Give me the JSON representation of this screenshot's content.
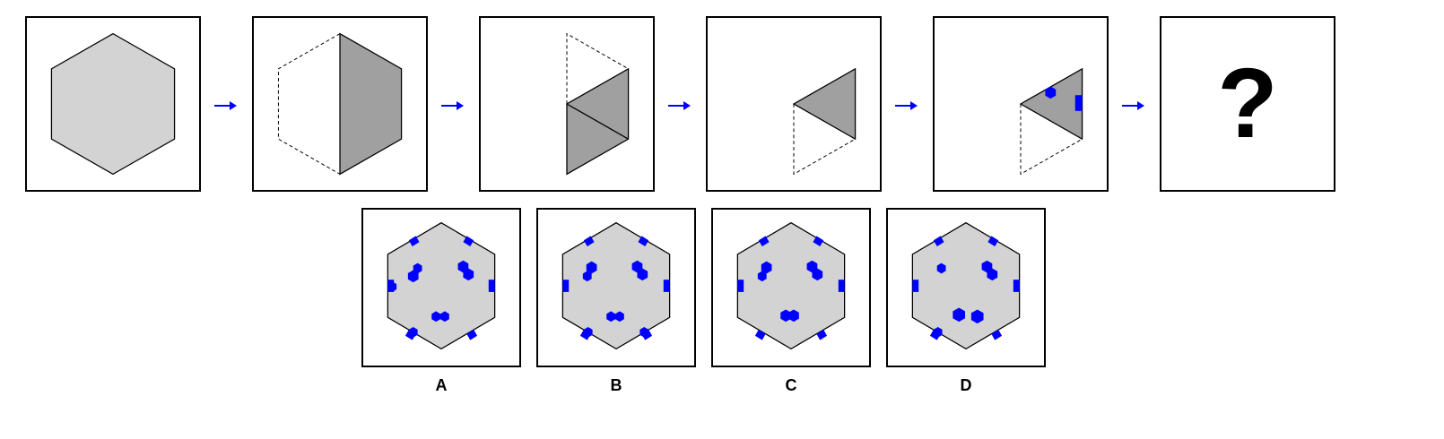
{
  "puzzle": {
    "question_mark": "?",
    "options": [
      {
        "label": "A"
      },
      {
        "label": "B"
      },
      {
        "label": "C"
      },
      {
        "label": "D"
      }
    ]
  },
  "colors": {
    "hex_fill": "#d3d3d3",
    "folded_fill": "#a0a0a0",
    "hole": "#0000ff",
    "arrow": "#0000ff",
    "outline": "#000000"
  },
  "icons": [
    "arrow-right-icon"
  ]
}
